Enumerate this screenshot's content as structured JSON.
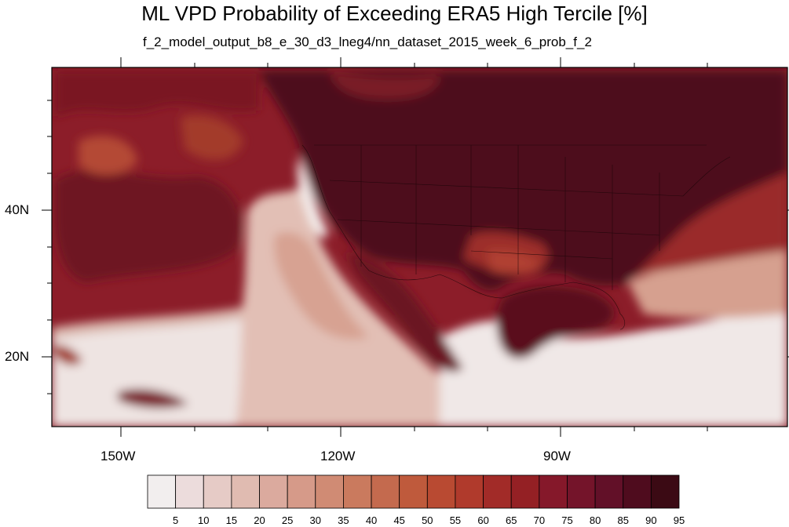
{
  "title": "ML VPD Probability of Exceeding ERA5 High Tercile [%]",
  "subtitle": "f_2_model_output_b8_e_30_d3_lneg4/nn_dataset_2015_week_6_prob_f_2",
  "lat_labels": [
    "40N",
    "20N"
  ],
  "lon_labels": [
    "150W",
    "120W",
    "90W"
  ],
  "colorbar": {
    "labels": [
      "5",
      "10",
      "15",
      "20",
      "25",
      "30",
      "35",
      "40",
      "45",
      "50",
      "55",
      "60",
      "65",
      "70",
      "75",
      "80",
      "85",
      "90",
      "95"
    ],
    "colors": [
      "#f2eeee",
      "#ecdcdc",
      "#e6cbc6",
      "#e0bbb1",
      "#dbaa9e",
      "#d69a89",
      "#d08b74",
      "#ca7a5e",
      "#c46a4e",
      "#bf5a3c",
      "#b94a32",
      "#b03a2c",
      "#a22b28",
      "#942024",
      "#85182a",
      "#74142a",
      "#621028",
      "#4f0c1e",
      "#3b0a14"
    ]
  },
  "legend": {
    "land_high": "#4a1018",
    "ocean_mid": "#8a1f2a",
    "ocean_low": "#efe7e7"
  }
}
